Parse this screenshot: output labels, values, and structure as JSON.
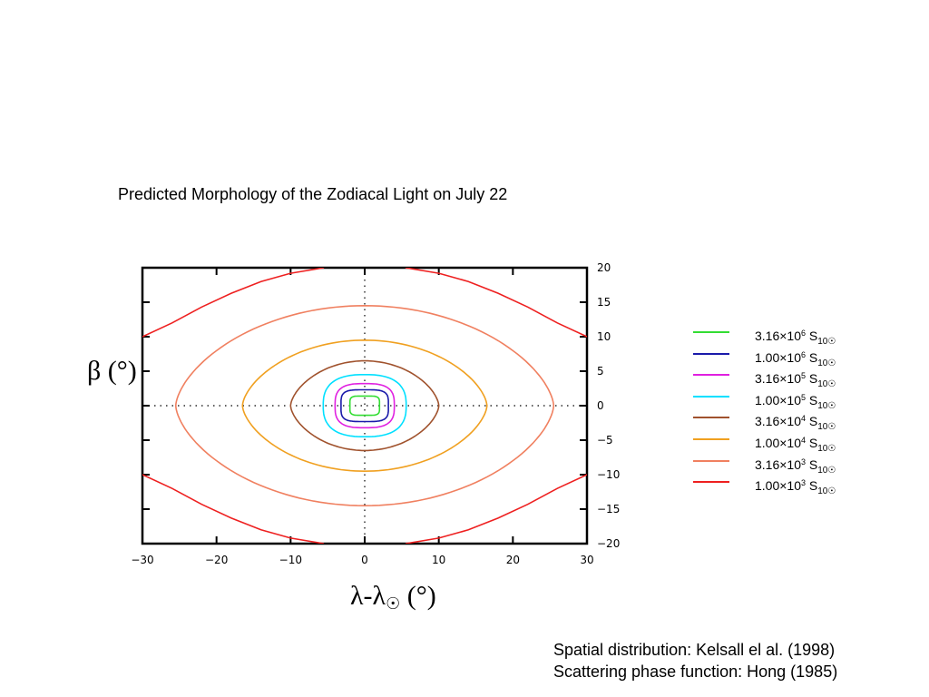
{
  "chart_data": {
    "type": "line",
    "title": "Predicted Morphology of the Zodiacal Light on July 22",
    "xlabel": "λ-λ☉ (°)",
    "ylabel": "β (°)",
    "xlim": [
      -30,
      30
    ],
    "ylim": [
      -20,
      20
    ],
    "xticks": [
      "−30",
      "−20",
      "−10",
      "0",
      "10",
      "20",
      "30"
    ],
    "yticks": [
      "20",
      "15",
      "10",
      "5",
      "0",
      "−5",
      "−10",
      "−15",
      "−20"
    ],
    "grid": "dotted lines through x=0 and y=0",
    "legend_position": "right",
    "series": [
      {
        "name": "3.16×10⁶ S10☉",
        "label_mant": "3.16",
        "label_exp": "6",
        "color": "#33dd33",
        "shape": "rect",
        "a": 2,
        "b": 1.4,
        "n": 5
      },
      {
        "name": "1.00×10⁶ S10☉",
        "label_mant": "1.00",
        "label_exp": "6",
        "color": "#1a1aaa",
        "shape": "rect",
        "a": 3.2,
        "b": 2.3,
        "n": 4
      },
      {
        "name": "3.16×10⁵ S10☉",
        "label_mant": "3.16",
        "label_exp": "5",
        "color": "#e020e0",
        "shape": "rect",
        "a": 4.0,
        "b": 3.2,
        "n": 3
      },
      {
        "name": "1.00×10⁵ S10☉",
        "label_mant": "1.00",
        "label_exp": "5",
        "color": "#00e0ff",
        "shape": "rect",
        "a": 5.6,
        "b": 4.5,
        "n": 2.6
      },
      {
        "name": "3.16×10⁴ S10☉",
        "label_mant": "3.16",
        "label_exp": "4",
        "color": "#a0522d",
        "shape": "lens",
        "a": 10,
        "b": 6.5
      },
      {
        "name": "1.00×10⁴ S10☉",
        "label_mant": "1.00",
        "label_exp": "4",
        "color": "#f0a020",
        "shape": "lens",
        "a": 16.5,
        "b": 9.5
      },
      {
        "name": "3.16×10³ S10☉",
        "label_mant": "3.16",
        "label_exp": "3",
        "color": "#f08060",
        "shape": "lens",
        "a": 25.5,
        "b": 14.5
      },
      {
        "name": "1.00×10³ S10☉",
        "label_mant": "1.00",
        "label_exp": "3",
        "color": "#ee2020",
        "shape": "corners",
        "x": [
          -30,
          -26,
          -22,
          -18,
          -14,
          -10,
          -5.5
        ],
        "y": [
          10,
          12,
          14.3,
          16.3,
          18,
          19.2,
          20
        ]
      }
    ]
  },
  "legend_unit": "S",
  "legend_unit_sub": "10☉",
  "notes": {
    "line1": "Spatial distribution: Kelsall el al. (1998)",
    "line2": "Scattering phase function: Hong (1985)"
  }
}
